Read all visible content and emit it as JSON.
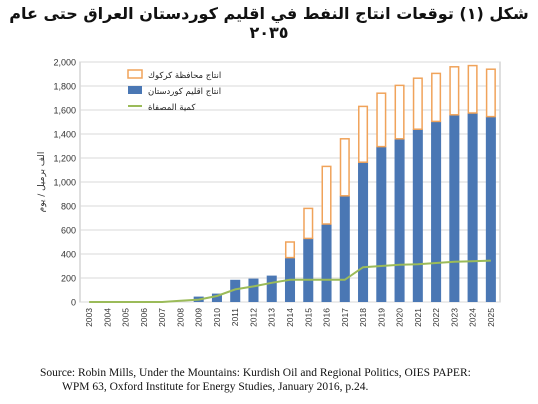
{
  "page": {
    "title": "شكل (١) توقعات انتاج النفط في اقليم كوردستان العراق حتى عام ٢٠٣٥",
    "source_line1": "Source: Robin Mills, Under the Mountains: Kurdish Oil and Regional Politics, OIES PAPER:",
    "source_line2": "WPM 63, Oxford Institute for Energy Studies, January 2016, p.24."
  },
  "chart_data": {
    "type": "bar",
    "title": "",
    "xlabel": "",
    "ylabel": "الف برميل / يوم",
    "ylim": [
      0,
      2000
    ],
    "yticks": [
      0,
      200,
      400,
      600,
      800,
      1000,
      1200,
      1400,
      1600,
      1800,
      2000
    ],
    "ytick_labels": [
      "0",
      "200",
      "400",
      "600",
      "800",
      "1,000",
      "1,200",
      "1,400",
      "1,600",
      "1,800",
      "2,000"
    ],
    "grid": true,
    "legend_position": "top-left",
    "categories": [
      "2003",
      "2004",
      "2005",
      "2006",
      "2007",
      "2008",
      "2009",
      "2010",
      "2011",
      "2012",
      "2013",
      "2014",
      "2015",
      "2016",
      "2017",
      "2018",
      "2019",
      "2020",
      "2021",
      "2022",
      "2023",
      "2024",
      "2025"
    ],
    "series": [
      {
        "name": "انتاج اقليم كوردستان",
        "kind": "stacked-bar",
        "color": "#4a77b4",
        "values": [
          0,
          0,
          0,
          0,
          0,
          0,
          45,
          70,
          185,
          195,
          220,
          370,
          530,
          650,
          885,
          1165,
          1295,
          1360,
          1440,
          1505,
          1560,
          1575,
          1545
        ]
      },
      {
        "name": "انتاج محافظة كركوك",
        "kind": "stacked-bar",
        "color": "#ffffff",
        "edge": "#f0a35a",
        "values": [
          0,
          0,
          0,
          0,
          0,
          0,
          0,
          0,
          0,
          0,
          0,
          130,
          250,
          480,
          475,
          465,
          445,
          445,
          425,
          400,
          400,
          395,
          395
        ]
      },
      {
        "name": "كمية المصفاة",
        "kind": "line",
        "color": "#9bbb59",
        "values": [
          0,
          0,
          0,
          0,
          0,
          10,
          20,
          50,
          105,
          130,
          160,
          185,
          185,
          185,
          185,
          290,
          300,
          310,
          315,
          325,
          335,
          340,
          345
        ]
      }
    ]
  }
}
